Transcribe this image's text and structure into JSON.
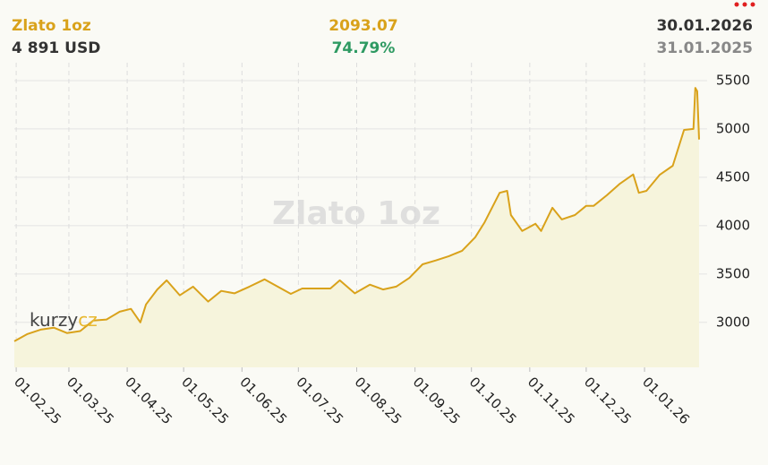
{
  "chart_data": {
    "type": "line",
    "title": "Zlato 1oz",
    "current_value": "4 891 USD",
    "change_value": "2093.07",
    "change_percent": "74.79%",
    "end_date": "30.01.2026",
    "start_date": "31.01.2025",
    "logo": {
      "main": "kurzy",
      "accent": "cz"
    },
    "color": "#d9a21b",
    "area_color": "#f6f4dc",
    "grid": true,
    "x": [
      "2025-01-31",
      "2025-02-07",
      "2025-02-14",
      "2025-02-21",
      "2025-02-28",
      "2025-03-07",
      "2025-03-14",
      "2025-03-21",
      "2025-03-28",
      "2025-04-03",
      "2025-04-08",
      "2025-04-11",
      "2025-04-17",
      "2025-04-22",
      "2025-04-29",
      "2025-05-06",
      "2025-05-14",
      "2025-05-21",
      "2025-05-28",
      "2025-06-05",
      "2025-06-13",
      "2025-06-20",
      "2025-06-27",
      "2025-07-03",
      "2025-07-11",
      "2025-07-18",
      "2025-07-23",
      "2025-07-31",
      "2025-08-08",
      "2025-08-15",
      "2025-08-22",
      "2025-08-29",
      "2025-09-05",
      "2025-09-12",
      "2025-09-19",
      "2025-09-26",
      "2025-10-03",
      "2025-10-08",
      "2025-10-16",
      "2025-10-20",
      "2025-10-22",
      "2025-10-28",
      "2025-11-04",
      "2025-11-07",
      "2025-11-13",
      "2025-11-18",
      "2025-11-25",
      "2025-12-01",
      "2025-12-05",
      "2025-12-12",
      "2025-12-19",
      "2025-12-26",
      "2025-12-29",
      "2026-01-02",
      "2026-01-09",
      "2026-01-16",
      "2026-01-22",
      "2026-01-27",
      "2026-01-28",
      "2026-01-29",
      "2026-01-30"
    ],
    "values": [
      2805,
      2880,
      2925,
      2945,
      2890,
      2910,
      3020,
      3030,
      3110,
      3140,
      3000,
      3185,
      3340,
      3435,
      3280,
      3370,
      3215,
      3325,
      3300,
      3370,
      3445,
      3370,
      3295,
      3350,
      3350,
      3350,
      3435,
      3300,
      3390,
      3340,
      3370,
      3460,
      3600,
      3640,
      3685,
      3740,
      3880,
      4035,
      4340,
      4360,
      4110,
      3945,
      4020,
      3945,
      4185,
      4065,
      4110,
      4205,
      4205,
      4315,
      4435,
      4530,
      4340,
      4360,
      4525,
      4620,
      4990,
      5000,
      5425,
      5390,
      4891
    ],
    "xlim": [
      "2025-01-31",
      "2026-01-30"
    ],
    "xticks": [
      {
        "value": "2025-02-01",
        "label": "01.02.25"
      },
      {
        "value": "2025-03-01",
        "label": "01.03.25"
      },
      {
        "value": "2025-04-01",
        "label": "01.04.25"
      },
      {
        "value": "2025-05-01",
        "label": "01.05.25"
      },
      {
        "value": "2025-06-01",
        "label": "01.06.25"
      },
      {
        "value": "2025-07-01",
        "label": "01.07.25"
      },
      {
        "value": "2025-08-01",
        "label": "01.08.25"
      },
      {
        "value": "2025-09-01",
        "label": "01.09.25"
      },
      {
        "value": "2025-10-01",
        "label": "01.10.25"
      },
      {
        "value": "2025-11-01",
        "label": "01.11.25"
      },
      {
        "value": "2025-12-01",
        "label": "01.12.25"
      },
      {
        "value": "2026-01-01",
        "label": "01.01.26"
      }
    ],
    "ylim": [
      2535,
      5685
    ],
    "yticks": [
      3000,
      3500,
      4000,
      4500,
      5000,
      5500
    ]
  }
}
